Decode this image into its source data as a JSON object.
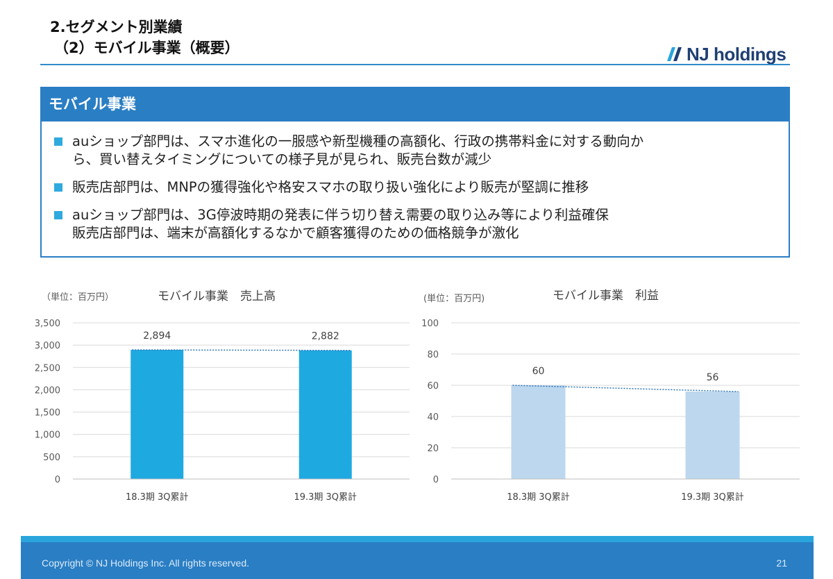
{
  "header": {
    "title_line1": "2.セグメント別業績",
    "title_line2": "（2）モバイル事業（概要）",
    "logo_text": "NJ holdings",
    "logo_icon": "double-slash-logo-icon",
    "accent_color": "#2a7ec4"
  },
  "section": {
    "heading": "モバイル事業",
    "bullets": [
      {
        "lines": [
          "auショップ部門は、スマホ進化の一服感や新型機種の高額化、行政の携帯料金に対する動向か",
          "ら、買い替えタイミングについての様子見が見られ、販売台数が減少"
        ]
      },
      {
        "lines": [
          "販売店部門は、MNPの獲得強化や格安スマホの取り扱い強化により販売が堅調に推移"
        ]
      },
      {
        "lines": [
          "auショップ部門は、3G停波時期の発表に伴う切り替え需要の取り込み等により利益確保",
          "販売店部門は、端末が高額化するなかで顧客獲得のための価格競争が激化"
        ]
      }
    ]
  },
  "chart_data": [
    {
      "type": "bar",
      "unit_label": "（単位：百万円）",
      "title": "モバイル事業　売上高",
      "categories": [
        "18.3期 3Q累計",
        "19.3期 3Q累計"
      ],
      "values": [
        2894,
        2882
      ],
      "value_labels": [
        "2,894",
        "2,882"
      ],
      "ylim": [
        0,
        3500
      ],
      "yticks": [
        0,
        500,
        1000,
        1500,
        2000,
        2500,
        3000,
        3500
      ],
      "ytick_labels": [
        "0",
        "500",
        "1,000",
        "1,500",
        "2,000",
        "2,500",
        "3,000",
        "3,500"
      ],
      "bar_color": "#1fa9e1",
      "trendline": "dotted",
      "grid": true
    },
    {
      "type": "bar",
      "unit_label": "(単位：百万円)",
      "title": "モバイル事業　利益",
      "categories": [
        "18.3期 3Q累計",
        "19.3期 3Q累計"
      ],
      "values": [
        60,
        56
      ],
      "value_labels": [
        "60",
        "56"
      ],
      "ylim": [
        0,
        100
      ],
      "yticks": [
        0,
        20,
        40,
        60,
        80,
        100
      ],
      "ytick_labels": [
        "0",
        "20",
        "40",
        "60",
        "80",
        "100"
      ],
      "bar_color": "#bdd7ee",
      "trendline": "dotted",
      "grid": true
    }
  ],
  "footer": {
    "copyright": "Copyright © NJ Holdings Inc. All rights reserved.",
    "page_number": "21"
  }
}
